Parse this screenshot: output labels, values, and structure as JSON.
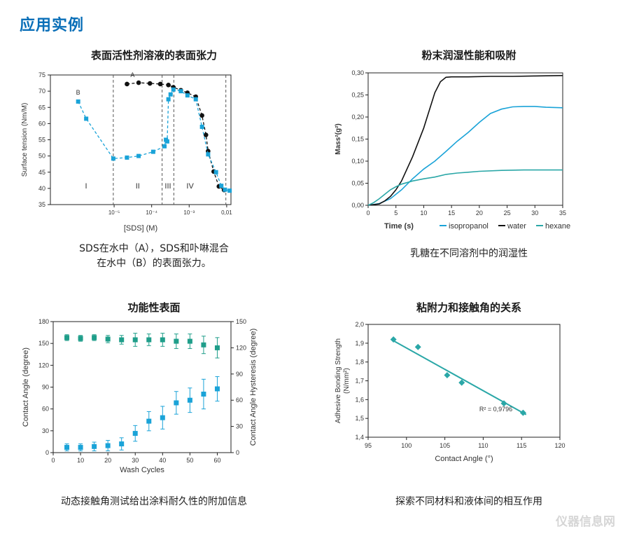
{
  "page": {
    "title": "应用实例",
    "watermark": "仪器信息网"
  },
  "panels": {
    "tension": {
      "title": "表面活性剂溶液的表面张力",
      "caption_line1": "SDS在水中（A），SDS和卟啉混合",
      "caption_line2": "在水中（B）的表面张力。"
    },
    "wetting": {
      "title": "粉末润湿性能和吸附",
      "caption": "乳糖在不同溶剂中的润湿性"
    },
    "functional": {
      "title": "功能性表面",
      "caption": "动态接触角测试给出涂料耐久性的附加信息"
    },
    "adhesion": {
      "title": "粘附力和接触角的关系",
      "caption": "探索不同材料和液体间的相互作用"
    }
  },
  "colors": {
    "title_blue": "#0a6fb8",
    "cyan": "#1aa3d8",
    "teal": "#2aa7a7",
    "black": "#111111",
    "green_teal": "#1f9e8a"
  },
  "chart_data": [
    {
      "id": "surface-tension",
      "type": "scatter",
      "xlabel": "[SDS] (M)",
      "ylabel": "Surface tension (Nm/M)",
      "xscale": "log",
      "xlim": [
        2e-07,
        0.013
      ],
      "ylim": [
        35,
        75
      ],
      "xticks": [
        {
          "v": 1e-05,
          "label": "10⁻⁵"
        },
        {
          "v": 0.0001,
          "label": "10⁻⁴"
        },
        {
          "v": 0.001,
          "label": "10⁻³"
        },
        {
          "v": 0.01,
          "label": "0,01"
        }
      ],
      "yticks": [
        35,
        40,
        45,
        50,
        55,
        60,
        65,
        70,
        75
      ],
      "regions": [
        "I",
        "II",
        "III",
        "IV"
      ],
      "region_bounds": [
        9.5e-06,
        0.00019,
        0.00039,
        0.0095
      ],
      "series": [
        {
          "name": "A",
          "color": "#111111",
          "marker": "circle",
          "x": [
            2.2e-05,
            4.5e-05,
            9e-05,
            0.00017,
            0.00028,
            0.00038,
            0.0006,
            0.0009,
            0.0015,
            0.0022,
            0.0028,
            0.0032,
            0.0045,
            0.0062,
            0.0085
          ],
          "y": [
            72.2,
            72.6,
            72.4,
            72.2,
            71.9,
            71.2,
            70.3,
            69.5,
            68.3,
            62.5,
            56.5,
            51.5,
            45.2,
            40.6,
            39.5
          ]
        },
        {
          "name": "B",
          "color": "#1aa3d8",
          "marker": "square",
          "x": [
            1.1e-06,
            1.8e-06,
            9.5e-06,
            2.2e-05,
            4.5e-05,
            0.00011,
            0.00022,
            0.00024,
            0.00026,
            0.00028,
            0.00032,
            0.00038,
            0.0006,
            0.0009,
            0.0015,
            0.0022,
            0.0032,
            0.0052,
            0.0072,
            0.009,
            0.012
          ],
          "y": [
            66.8,
            61.5,
            49.2,
            49.5,
            50.0,
            51.3,
            53.0,
            55.0,
            54.5,
            67.5,
            69.0,
            70.5,
            70.0,
            68.7,
            67.5,
            59.0,
            50.5,
            45.0,
            40.8,
            39.6,
            39.3
          ]
        }
      ]
    },
    {
      "id": "powder-wetting",
      "type": "line",
      "xlabel": "Time (s)",
      "ylabel": "Mass²(g²)",
      "xlim": [
        0,
        35
      ],
      "ylim": [
        0,
        0.3
      ],
      "xticks": [
        0,
        5,
        10,
        15,
        20,
        25,
        30,
        35
      ],
      "yticks": [
        "0,00",
        "0,05",
        "0,10",
        "0,15",
        "0,20",
        "0,25",
        "0,30"
      ],
      "series": [
        {
          "name": "isopropanol",
          "color": "#1aa3d8",
          "x": [
            0,
            2,
            4,
            6,
            8,
            10,
            12,
            14,
            16,
            18,
            20,
            22,
            24,
            26,
            28,
            30,
            32,
            35
          ],
          "y": [
            0,
            0.004,
            0.015,
            0.035,
            0.06,
            0.082,
            0.1,
            0.122,
            0.145,
            0.165,
            0.188,
            0.208,
            0.218,
            0.223,
            0.224,
            0.224,
            0.222,
            0.221
          ]
        },
        {
          "name": "water",
          "color": "#111111",
          "x": [
            0,
            2,
            3,
            4,
            5,
            6,
            8,
            10,
            12,
            13,
            14,
            15,
            18,
            22,
            26,
            30,
            35
          ],
          "y": [
            0,
            0.003,
            0.01,
            0.02,
            0.035,
            0.055,
            0.11,
            0.175,
            0.255,
            0.28,
            0.29,
            0.291,
            0.291,
            0.292,
            0.292,
            0.293,
            0.294
          ]
        },
        {
          "name": "hexane",
          "color": "#2aa7a7",
          "x": [
            0,
            1,
            2,
            3,
            4,
            5,
            6,
            8,
            10,
            12,
            14,
            16,
            18,
            20,
            24,
            28,
            32,
            35
          ],
          "y": [
            0,
            0.006,
            0.015,
            0.025,
            0.035,
            0.042,
            0.048,
            0.055,
            0.06,
            0.064,
            0.07,
            0.073,
            0.075,
            0.077,
            0.079,
            0.08,
            0.08,
            0.08
          ]
        }
      ]
    },
    {
      "id": "functional-surface",
      "type": "scatter",
      "xlabel": "Wash Cycles",
      "ylabel": "Contact Angle (degree)",
      "y2label": "Contact Angle Hysteresis (degree)",
      "xlim": [
        0,
        65
      ],
      "ylim": [
        0,
        180
      ],
      "y2lim": [
        0,
        150
      ],
      "xticks": [
        0,
        10,
        20,
        30,
        40,
        50,
        60
      ],
      "yticks": [
        0,
        30,
        60,
        90,
        120,
        150,
        180
      ],
      "y2ticks": [
        0,
        30,
        60,
        90,
        120,
        150
      ],
      "series": [
        {
          "name": "contact angle",
          "color": "#1f9e8a",
          "axis": "left",
          "x": [
            5,
            10,
            15,
            20,
            25,
            30,
            35,
            40,
            45,
            50,
            55,
            60
          ],
          "y": [
            158,
            157,
            158,
            156,
            155,
            155,
            155,
            155,
            153,
            153,
            148,
            144
          ],
          "err": [
            4,
            4,
            4,
            5,
            6,
            9,
            8,
            9,
            10,
            10,
            12,
            14
          ]
        },
        {
          "name": "hysteresis",
          "color": "#1aa3d8",
          "axis": "right",
          "x": [
            5,
            10,
            15,
            20,
            25,
            30,
            35,
            40,
            45,
            50,
            55,
            60
          ],
          "y": [
            6,
            6,
            7,
            8,
            10,
            22,
            36,
            40,
            57,
            60,
            67,
            73
          ],
          "err": [
            4,
            4,
            5,
            6,
            7,
            9,
            11,
            13,
            13,
            14,
            17,
            14
          ]
        }
      ]
    },
    {
      "id": "adhesion-contact-angle",
      "type": "scatter",
      "xlabel": "Contact Angle (°)",
      "ylabel": "Adhesive Bonding Strength",
      "ylabel2": "(N/mm²)",
      "xlim": [
        95,
        120
      ],
      "ylim": [
        1.4,
        2.0
      ],
      "xticks": [
        95,
        100,
        105,
        110,
        115,
        120
      ],
      "yticks": [
        "1,4",
        "1,5",
        "1,6",
        "1,7",
        "1,8",
        "1,9",
        "2,0"
      ],
      "annotation": "R² = 0,9796",
      "series": [
        {
          "name": "data",
          "color": "#2aa7a7",
          "x": [
            98.3,
            101.5,
            105.3,
            107.2,
            112.7,
            115.2
          ],
          "y": [
            1.92,
            1.88,
            1.73,
            1.69,
            1.58,
            1.53
          ]
        }
      ],
      "fit": {
        "x": [
          98.0,
          115.6
        ],
        "y": [
          1.92,
          1.52
        ]
      }
    }
  ]
}
